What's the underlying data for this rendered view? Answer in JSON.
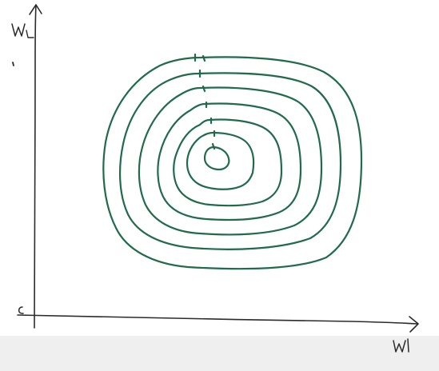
{
  "diagram": {
    "y_axis_label": "w₂",
    "x_axis_label": "w1",
    "origin_mark": "c",
    "contour_count": 7,
    "colors": {
      "background": "#ffffff",
      "bottom_band": "#efefef",
      "axis_ink": "#2b2b2b",
      "contour_ink": "#1f6b4a"
    }
  }
}
